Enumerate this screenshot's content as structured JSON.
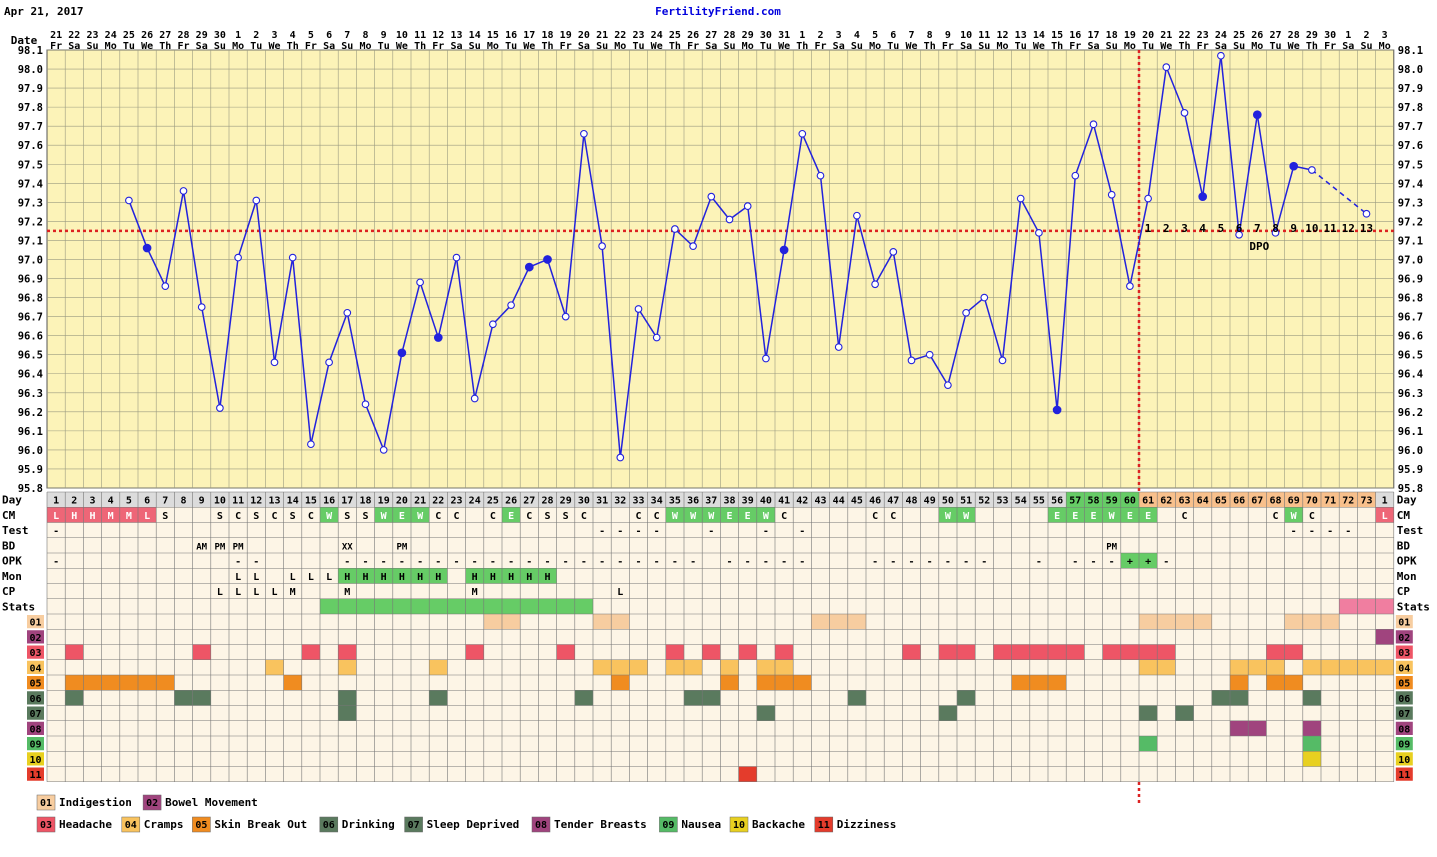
{
  "header": {
    "date_text": "Apr 21, 2017",
    "site": "FertilityFriend.com"
  },
  "chart_data": {
    "type": "line",
    "title": "",
    "xlabel": "",
    "ylabel": "",
    "ylim": [
      95.8,
      98.1
    ],
    "grid": true,
    "coverline": 97.15,
    "ovulation_day": 60,
    "yticks": [
      "95.8",
      "95.9",
      "96.0",
      "96.1",
      "96.2",
      "96.3",
      "96.4",
      "96.5",
      "96.6",
      "96.7",
      "96.8",
      "96.9",
      "97.0",
      "97.1",
      "97.2",
      "97.3",
      "97.4",
      "97.5",
      "97.6",
      "97.7",
      "97.8",
      "97.9",
      "98.0",
      "98.1"
    ],
    "dates": [
      "21",
      "22",
      "23",
      "24",
      "25",
      "26",
      "27",
      "28",
      "29",
      "30",
      "1",
      "2",
      "3",
      "4",
      "5",
      "6",
      "7",
      "8",
      "9",
      "10",
      "11",
      "12",
      "13",
      "14",
      "15",
      "16",
      "17",
      "18",
      "19",
      "20",
      "21",
      "22",
      "23",
      "24",
      "25",
      "26",
      "27",
      "28",
      "29",
      "30",
      "31",
      "1",
      "2",
      "3",
      "4",
      "5",
      "6",
      "7",
      "8",
      "9",
      "10",
      "11",
      "12",
      "13",
      "14",
      "15",
      "16",
      "17",
      "18",
      "19",
      "20",
      "21",
      "22",
      "23",
      "24",
      "25",
      "26",
      "27",
      "28",
      "29",
      "30",
      "1",
      "2",
      "3"
    ],
    "weekdays": [
      "Fr",
      "Sa",
      "Su",
      "Mo",
      "Tu",
      "We",
      "Th",
      "Fr",
      "Sa",
      "Su",
      "Mo",
      "Tu",
      "We",
      "Th",
      "Fr",
      "Sa",
      "Su",
      "Mo",
      "Tu",
      "We",
      "Th",
      "Fr",
      "Sa",
      "Su",
      "Mo",
      "Tu",
      "We",
      "Th",
      "Fr",
      "Sa",
      "Su",
      "Mo",
      "Tu",
      "We",
      "Th",
      "Fr",
      "Sa",
      "Su",
      "Mo",
      "Tu",
      "We",
      "Th",
      "Fr",
      "Sa",
      "Su",
      "Mo",
      "Tu",
      "We",
      "Th",
      "Fr",
      "Sa",
      "Su",
      "Mo",
      "Tu",
      "We",
      "Th",
      "Fr",
      "Sa",
      "Su",
      "Mo",
      "Tu",
      "We",
      "Th",
      "Fr",
      "Sa",
      "Su",
      "Mo",
      "Tu",
      "We",
      "Th",
      "Fr",
      "Sa",
      "Su",
      "Mo"
    ],
    "cycle_days": [
      "1",
      "2",
      "3",
      "4",
      "5",
      "6",
      "7",
      "8",
      "9",
      "10",
      "11",
      "12",
      "13",
      "14",
      "15",
      "16",
      "17",
      "18",
      "19",
      "20",
      "21",
      "22",
      "23",
      "24",
      "25",
      "26",
      "27",
      "28",
      "29",
      "30",
      "31",
      "32",
      "33",
      "34",
      "35",
      "36",
      "37",
      "38",
      "39",
      "40",
      "41",
      "42",
      "43",
      "44",
      "45",
      "46",
      "47",
      "48",
      "49",
      "50",
      "51",
      "52",
      "53",
      "54",
      "55",
      "56",
      "57",
      "58",
      "59",
      "60",
      "61",
      "62",
      "63",
      "64",
      "65",
      "66",
      "67",
      "68",
      "69",
      "70",
      "71",
      "72",
      "73",
      "1"
    ],
    "series": [
      {
        "values": [
          null,
          null,
          null,
          null,
          97.31,
          97.06,
          96.86,
          97.36,
          96.75,
          96.22,
          97.01,
          97.31,
          96.46,
          97.01,
          96.03,
          96.46,
          96.72,
          96.24,
          96.0,
          96.51,
          96.88,
          96.59,
          97.01,
          96.27,
          96.66,
          96.76,
          96.96,
          97.0,
          96.7,
          97.66,
          97.07,
          95.96,
          96.74,
          96.59,
          97.16,
          97.07,
          97.33,
          97.21,
          97.28,
          96.48,
          97.05,
          97.66,
          97.44,
          96.54,
          97.23,
          96.87,
          97.04,
          96.47,
          96.5,
          96.34,
          96.72,
          96.8,
          96.47,
          97.32,
          97.14,
          96.21,
          97.44,
          97.71,
          97.34,
          96.86,
          97.32,
          98.01,
          97.77,
          97.33,
          98.07,
          97.13,
          97.76,
          97.14,
          97.49,
          97.47,
          null,
          null,
          97.24,
          null
        ],
        "filled_days": [
          6,
          20,
          22,
          27,
          28,
          41,
          56,
          64,
          67,
          69
        ]
      }
    ],
    "dpo_labels": [
      "1",
      "2",
      "3",
      "4",
      "5",
      "6",
      "7",
      "8",
      "9",
      "10",
      "11",
      "12",
      "13"
    ],
    "dpo_text": "DPO"
  },
  "rows": {
    "day_label": "Day",
    "labels": [
      "CM",
      "Test",
      "BD",
      "OPK",
      "Mon",
      "CP",
      "Stats"
    ],
    "cm": [
      "L",
      "H",
      "H",
      "M",
      "M",
      "L",
      "S",
      "",
      "",
      "S",
      "C",
      "S",
      "C",
      "S",
      "C",
      "W",
      "S",
      "S",
      "W",
      "E",
      "W",
      "C",
      "C",
      "",
      "C",
      "E",
      "C",
      "S",
      "S",
      "C",
      "",
      "",
      "C",
      "C",
      "W",
      "W",
      "W",
      "E",
      "E",
      "W",
      "C",
      "",
      "",
      "",
      "",
      "C",
      "C",
      "",
      "",
      "W",
      "W",
      "",
      "",
      "",
      "",
      "E",
      "E",
      "E",
      "W",
      "E",
      "E",
      "",
      "C",
      "",
      "",
      "",
      "",
      "C",
      "W",
      "C",
      "",
      "",
      "",
      "L"
    ],
    "test": [
      "-",
      "",
      "",
      "",
      "",
      "",
      "",
      "",
      "",
      "",
      "",
      "",
      "",
      "",
      "",
      "",
      "",
      "",
      "",
      "",
      "",
      "",
      "",
      "",
      "",
      "",
      "",
      "",
      "",
      "",
      "-",
      "-",
      "-",
      "-",
      "",
      "",
      "-",
      "",
      "",
      "-",
      "",
      "-",
      "",
      "",
      "",
      "",
      "",
      "",
      "",
      "",
      "",
      "",
      "",
      "",
      "",
      "",
      "",
      "",
      "",
      "",
      "",
      "",
      "",
      "",
      "",
      "",
      "",
      "",
      "-",
      "-",
      "-",
      "-",
      ""
    ],
    "bd": [
      "",
      "",
      "",
      "",
      "",
      "",
      "",
      "",
      "AM",
      "PM",
      "PM",
      "",
      "",
      "",
      "",
      "",
      "XX",
      "",
      "",
      "PM",
      "",
      "",
      "",
      "",
      "",
      "",
      "",
      "",
      "",
      "",
      "",
      "",
      "",
      "",
      "",
      "",
      "",
      "",
      "",
      "",
      "",
      "",
      "",
      "",
      "",
      "",
      "",
      "",
      "",
      "",
      "",
      "",
      "",
      "",
      "",
      "",
      "",
      "",
      "PM",
      "",
      "",
      "",
      "",
      "",
      "",
      "",
      "",
      "",
      "",
      "",
      "",
      "",
      "",
      ""
    ],
    "opk": [
      "-",
      "",
      "",
      "",
      "",
      "",
      "",
      "",
      "",
      "",
      "-",
      "-",
      "",
      "",
      "",
      "",
      "-",
      "-",
      "-",
      "-",
      "-",
      "-",
      "-",
      "-",
      "-",
      "-",
      "-",
      "-",
      "-",
      "-",
      "-",
      "-",
      "-",
      "-",
      "-",
      "-",
      "",
      "-",
      "-",
      "-",
      "-",
      "-",
      "",
      "",
      "",
      "-",
      "-",
      "-",
      "-",
      "-",
      "-",
      "-",
      "",
      "",
      "-",
      "",
      "-",
      "-",
      "-",
      "+",
      "+",
      "-",
      "",
      "",
      "",
      "",
      "",
      "",
      "",
      "",
      "",
      "",
      "",
      ""
    ],
    "mon": [
      "",
      "",
      "",
      "",
      "",
      "",
      "",
      "",
      "",
      "",
      "L",
      "L",
      "",
      "L",
      "L",
      "L",
      "H",
      "H",
      "H",
      "H",
      "H",
      "H",
      "",
      "H",
      "H",
      "H",
      "H",
      "H",
      "",
      "",
      "",
      "",
      "",
      "",
      "",
      "",
      "",
      "",
      "",
      "",
      "",
      "",
      "",
      "",
      "",
      "",
      "",
      "",
      "",
      "",
      "",
      "",
      "",
      "",
      "",
      "",
      "",
      "",
      "",
      "",
      "",
      "",
      "",
      "",
      "",
      "",
      "",
      "",
      "",
      "",
      "",
      "",
      ""
    ],
    "cp": [
      "",
      "",
      "",
      "",
      "",
      "",
      "",
      "",
      "",
      "L",
      "L",
      "L",
      "L",
      "M",
      "",
      "",
      "M",
      "",
      "",
      "",
      "",
      "",
      "",
      "M",
      "",
      "",
      "",
      "",
      "",
      "",
      "",
      "L",
      "",
      "",
      "",
      "",
      "",
      "",
      "",
      "",
      "",
      "",
      "",
      "",
      "",
      "",
      "",
      "",
      "",
      "",
      "",
      "",
      "",
      "",
      "",
      "",
      "",
      "",
      "",
      "",
      "",
      "",
      "",
      "",
      "",
      "",
      "",
      "",
      "",
      "",
      "",
      "",
      ""
    ],
    "symptom_codes": [
      "01",
      "02",
      "03",
      "04",
      "05",
      "06",
      "07",
      "08",
      "09",
      "10",
      "11"
    ],
    "legend": [
      {
        "code": "01",
        "label": "Indigestion",
        "color": "#f7cda0"
      },
      {
        "code": "02",
        "label": "Bowel Movement",
        "color": "#a0447e"
      },
      {
        "code": "03",
        "label": "Headache",
        "color": "#ee5566"
      },
      {
        "code": "04",
        "label": "Cramps",
        "color": "#f9c35e"
      },
      {
        "code": "05",
        "label": "Skin Break Out",
        "color": "#f08c20"
      },
      {
        "code": "06",
        "label": "Drinking",
        "color": "#5a7a5e"
      },
      {
        "code": "07",
        "label": "Sleep Deprived",
        "color": "#5a7a5e"
      },
      {
        "code": "08",
        "label": "Tender Breasts",
        "color": "#a0447e"
      },
      {
        "code": "09",
        "label": "Nausea",
        "color": "#55bb66"
      },
      {
        "code": "10",
        "label": "Backache",
        "color": "#e8d020"
      },
      {
        "code": "11",
        "label": "Dizziness",
        "color": "#e43c2c"
      }
    ],
    "symptoms": {
      "01": [
        25,
        26,
        31,
        32,
        43,
        44,
        45,
        61,
        62,
        63,
        64,
        69,
        70,
        71
      ],
      "02": [
        74
      ],
      "03": [
        2,
        9,
        15,
        17,
        24,
        29,
        35,
        37,
        39,
        41,
        48,
        50,
        51,
        53,
        54,
        55,
        56,
        57,
        59,
        60,
        61,
        62,
        68,
        69
      ],
      "04": [
        13,
        17,
        22,
        31,
        32,
        33,
        35,
        36,
        38,
        40,
        41,
        61,
        62,
        66,
        67,
        68,
        70,
        71,
        72,
        73,
        74
      ],
      "05": [
        2,
        3,
        4,
        5,
        6,
        7,
        14,
        32,
        38,
        40,
        41,
        42,
        54,
        55,
        56,
        66,
        68,
        69
      ],
      "06": [
        2,
        8,
        9,
        17,
        22,
        30,
        36,
        37,
        45,
        51,
        65,
        66,
        70
      ],
      "07": [
        17,
        40,
        50,
        61,
        63
      ],
      "08": [
        66,
        67,
        70
      ],
      "09": [
        61,
        70
      ],
      "10": [
        70
      ],
      "11": [
        39
      ]
    },
    "stats_green": [
      16,
      30
    ],
    "stats_pink": [
      72,
      74
    ]
  },
  "colors": {
    "chart_bg": "#fcf3b8",
    "row_bg": "#fdf5e6",
    "line": "#2222dd",
    "coverline": "#dd2222",
    "post_ov": "#f8c08c",
    "cm_fertile": "#66cc66",
    "cm_red": "#ee6677"
  }
}
